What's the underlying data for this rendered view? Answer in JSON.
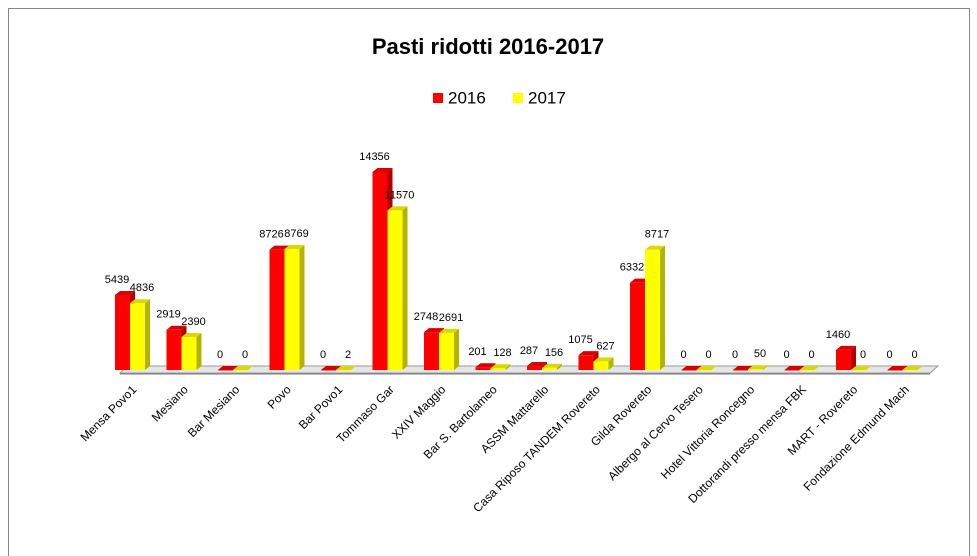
{
  "chart_data": {
    "type": "bar",
    "title": "Pasti ridotti 2016-2017",
    "categories": [
      "Mensa Povo1",
      "Mesiano",
      "Bar Mesiano",
      "Povo",
      "Bar Povo1",
      "Tommaso Gar",
      "XXIV Maggio",
      "Bar S. Bartolameo",
      "ASSM Mattarello",
      "Casa Riposo TANDEM Rovereto",
      "Gilda Rovereto",
      "Albergo al Cervo Tesero",
      "Hotel Vittoria Roncegno",
      "Dottorandi presso mensa FBK",
      "MART - Rovereto",
      "Fondazione Edmund Mach"
    ],
    "series": [
      {
        "name": "2016",
        "color": "#ff0000",
        "values": [
          5439,
          2919,
          0,
          8726,
          0,
          14356,
          2748,
          201,
          287,
          1075,
          6332,
          0,
          0,
          0,
          1460,
          0
        ]
      },
      {
        "name": "2017",
        "color": "#ffff00",
        "values": [
          4836,
          2390,
          0,
          8769,
          2,
          11570,
          2691,
          128,
          156,
          627,
          8717,
          0,
          50,
          0,
          0,
          0
        ]
      }
    ],
    "legend": "top"
  }
}
